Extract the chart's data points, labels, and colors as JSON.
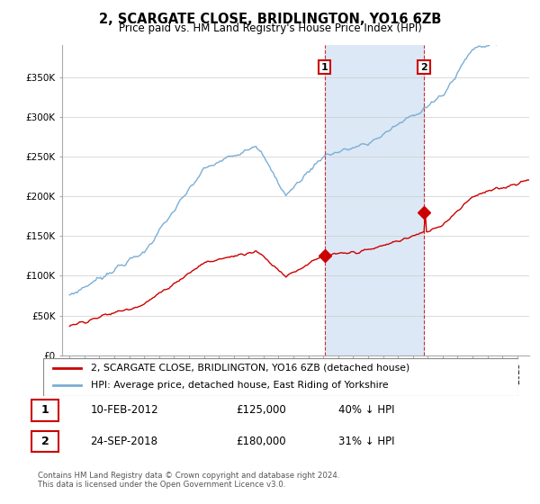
{
  "title": "2, SCARGATE CLOSE, BRIDLINGTON, YO16 6ZB",
  "subtitle": "Price paid vs. HM Land Registry's House Price Index (HPI)",
  "legend_line1": "2, SCARGATE CLOSE, BRIDLINGTON, YO16 6ZB (detached house)",
  "legend_line2": "HPI: Average price, detached house, East Riding of Yorkshire",
  "footer": "Contains HM Land Registry data © Crown copyright and database right 2024.\nThis data is licensed under the Open Government Licence v3.0.",
  "sale1_date": "10-FEB-2012",
  "sale1_price": "£125,000",
  "sale1_hpi": "40% ↓ HPI",
  "sale2_date": "24-SEP-2018",
  "sale2_price": "£180,000",
  "sale2_hpi": "31% ↓ HPI",
  "red_color": "#cc0000",
  "blue_color": "#7aaed6",
  "shade_color": "#dce8f5",
  "ytick_labels": [
    "£0",
    "£50K",
    "£100K",
    "£150K",
    "£200K",
    "£250K",
    "£300K",
    "£350K"
  ],
  "yticks": [
    0,
    50000,
    100000,
    150000,
    200000,
    250000,
    300000,
    350000
  ],
  "sale1_x": 2012.1,
  "sale2_x": 2018.75,
  "sale1_y": 125000,
  "sale2_y": 180000,
  "vline1_x": 2012.1,
  "vline2_x": 2018.75,
  "xlim_start": 1994.5,
  "xlim_end": 2025.8,
  "ylim_top": 390000
}
